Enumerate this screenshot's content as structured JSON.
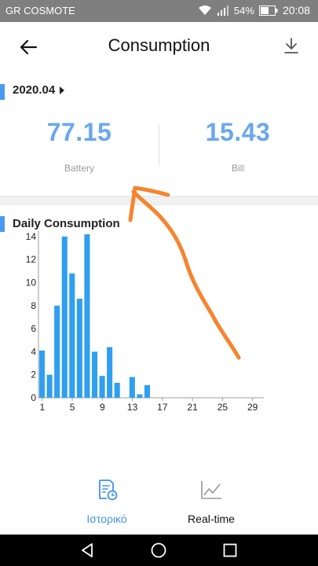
{
  "status_bar": {
    "carrier": "GR COSMOTE",
    "battery": "54%",
    "time": "20:08"
  },
  "header": {
    "title": "Consumption",
    "back_icon": "arrow-left-icon",
    "download_icon": "download-icon"
  },
  "month": {
    "label": "2020.04"
  },
  "summary": [
    {
      "value": "77.15",
      "label": "Battery"
    },
    {
      "value": "15.43",
      "label": "Bill"
    }
  ],
  "daily": {
    "title": "Daily Consumption"
  },
  "chart_data": {
    "type": "bar",
    "title": "Daily Consumption",
    "x": [
      1,
      2,
      3,
      4,
      5,
      6,
      7,
      8,
      9,
      10,
      11,
      12,
      13,
      14,
      15,
      16,
      17,
      18,
      19,
      20,
      21,
      22,
      23,
      24,
      25,
      26,
      27,
      28,
      29,
      30
    ],
    "values": [
      4.1,
      2.0,
      8.0,
      14.0,
      10.8,
      8.6,
      14.2,
      4.0,
      1.9,
      4.4,
      1.3,
      0,
      1.8,
      0.3,
      1.1,
      0,
      0,
      0,
      0,
      0,
      0,
      0,
      0,
      0,
      0,
      0,
      0,
      0,
      0,
      0
    ],
    "xticks": [
      1,
      5,
      9,
      13,
      17,
      21,
      25,
      29
    ],
    "yticks": [
      0,
      2,
      4,
      6,
      8,
      10,
      12,
      14
    ],
    "ylim": [
      0,
      14.2
    ],
    "bar_color": "#2f9ff0",
    "grid": false
  },
  "tabs": [
    {
      "label": "Ιστορικό",
      "icon": "history-document-icon",
      "active": true
    },
    {
      "label": "Real-time",
      "icon": "line-chart-icon",
      "active": false
    }
  ],
  "colors": {
    "accent": "#4a9af2",
    "value": "#6aa8ec",
    "annotation": "#f5852e"
  }
}
